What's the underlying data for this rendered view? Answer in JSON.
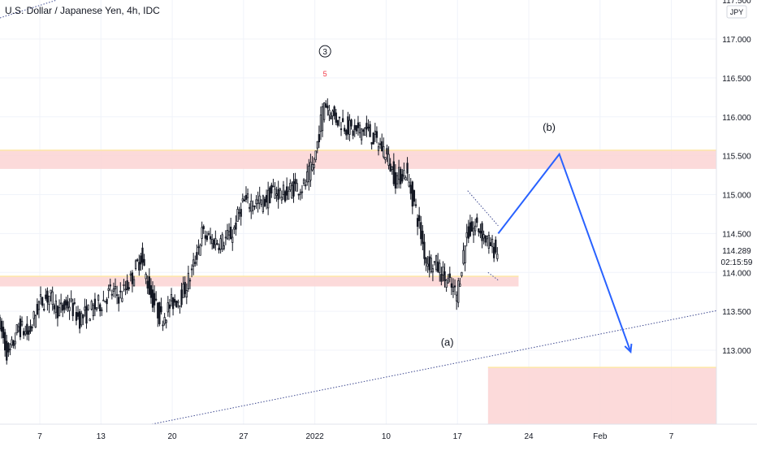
{
  "chart_data": {
    "type": "candlestick",
    "title": "U.S. Dollar / Japanese Yen, 4h, IDC",
    "currency": "JPY",
    "y_ticks": [
      113.0,
      113.5,
      114.0,
      114.5,
      115.0,
      115.5,
      116.0,
      116.5,
      117.0
    ],
    "y_tick_labels": [
      "113.000",
      "113.500",
      "114.000",
      "114.500",
      "115.000",
      "115.500",
      "116.000",
      "116.500",
      "117.000"
    ],
    "y_tick_top_partial": "117.500",
    "y_range": [
      112.0,
      117.6
    ],
    "x_tick_labels": [
      "7",
      "13",
      "20",
      "27",
      "2022",
      "10",
      "17",
      "24",
      "Feb",
      "7"
    ],
    "last_price": "114.289",
    "countdown": "02:15:59",
    "grid": true,
    "colors": {
      "candle": "#131722",
      "zone": "#fcd4d4",
      "zone_border": "#fde7a8",
      "projection": "#2962ff",
      "dotted": "#3f4a91",
      "grid": "#f0f3fa",
      "axis_text": "#131722"
    },
    "zones": [
      {
        "name": "resistance-zone",
        "from_date": "2021-12-03",
        "to_date": "2022-02-13",
        "low": 115.33,
        "high": 115.57
      },
      {
        "name": "support-zone",
        "from_date": "2021-12-03",
        "to_date": "2022-01-23",
        "low": 113.82,
        "high": 113.95
      },
      {
        "name": "target-zone",
        "from_date": "2022-01-20",
        "to_date": "2022-02-13",
        "low": 112.05,
        "high": 112.78
      }
    ],
    "ohlc_anchors": [
      [
        "2021-12-03",
        113.4
      ],
      [
        "2021-12-04",
        112.9
      ],
      [
        "2021-12-05",
        113.3
      ],
      [
        "2021-12-06",
        113.2
      ],
      [
        "2021-12-07",
        113.6
      ],
      [
        "2021-12-08",
        113.7
      ],
      [
        "2021-12-09",
        113.5
      ],
      [
        "2021-12-10",
        113.6
      ],
      [
        "2021-12-11",
        113.4
      ],
      [
        "2021-12-12",
        113.5
      ],
      [
        "2021-12-13",
        113.6
      ],
      [
        "2021-12-14",
        113.75
      ],
      [
        "2021-12-15",
        113.7
      ],
      [
        "2021-12-16",
        113.9
      ],
      [
        "2021-12-17",
        114.2
      ],
      [
        "2021-12-18",
        113.7
      ],
      [
        "2021-12-19",
        113.4
      ],
      [
        "2021-12-20",
        113.6
      ],
      [
        "2021-12-21",
        113.7
      ],
      [
        "2021-12-22",
        114.0
      ],
      [
        "2021-12-23",
        114.5
      ],
      [
        "2021-12-24",
        114.4
      ],
      [
        "2021-12-25",
        114.4
      ],
      [
        "2021-12-26",
        114.5
      ],
      [
        "2021-12-27",
        114.9
      ],
      [
        "2021-12-28",
        114.9
      ],
      [
        "2021-12-29",
        114.9
      ],
      [
        "2021-12-30",
        115.05
      ],
      [
        "2021-12-31",
        115.0
      ],
      [
        "2022-01-01",
        115.1
      ],
      [
        "2022-01-02",
        115.1
      ],
      [
        "2022-01-03",
        115.4
      ],
      [
        "2022-01-04",
        116.2
      ],
      [
        "2022-01-05",
        116.0
      ],
      [
        "2022-01-06",
        115.9
      ],
      [
        "2022-01-07",
        115.8
      ],
      [
        "2022-01-08",
        115.85
      ],
      [
        "2022-01-09",
        115.7
      ],
      [
        "2022-01-10",
        115.55
      ],
      [
        "2022-01-11",
        115.2
      ],
      [
        "2022-01-12",
        115.3
      ],
      [
        "2022-01-13",
        114.8
      ],
      [
        "2022-01-14",
        114.15
      ],
      [
        "2022-01-15",
        114.1
      ],
      [
        "2022-01-16",
        113.9
      ],
      [
        "2022-01-17",
        113.7
      ],
      [
        "2022-01-18",
        114.5
      ],
      [
        "2022-01-19",
        114.6
      ],
      [
        "2022-01-20",
        114.4
      ],
      [
        "2022-01-21",
        114.25
      ]
    ],
    "ohlc_bars_per_day": 6,
    "projection_path": [
      [
        "2022-01-21",
        114.5
      ],
      [
        "2022-01-27",
        115.52
      ],
      [
        "2022-02-03",
        112.98
      ]
    ],
    "annotations": [
      {
        "text": "3",
        "date": "2022-01-04",
        "price": 116.8,
        "style": "circled"
      },
      {
        "text": "5",
        "date": "2022-01-04",
        "price": 116.52,
        "color": "#f23645"
      },
      {
        "text": "(b)",
        "date": "2022-01-26",
        "price": 115.82
      },
      {
        "text": "(a)",
        "date": "2022-01-16",
        "price": 113.06
      }
    ],
    "dotted_lines": [
      {
        "from": [
          "2021-12-18",
          112.05
        ],
        "to": [
          "2022-02-13",
          113.55
        ]
      },
      {
        "from": [
          "2022-01-18",
          115.05
        ],
        "to": [
          "2022-01-21",
          114.6
        ]
      },
      {
        "from": [
          "2022-01-20",
          114.0
        ],
        "to": [
          "2022-01-21",
          113.9
        ]
      }
    ]
  }
}
